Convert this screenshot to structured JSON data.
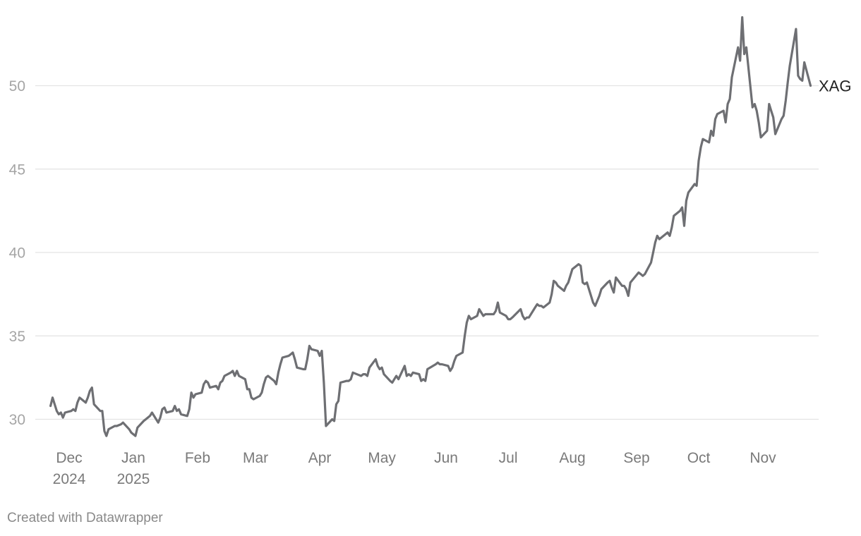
{
  "footer": {
    "credit": "Created with Datawrapper"
  },
  "colors": {
    "line": "#6e6f73",
    "grid": "#e3e3e3",
    "ytick_text": "#a5a5a5",
    "xtick_text": "#7a7a7a",
    "label_text": "#222222"
  },
  "chart_data": {
    "type": "line",
    "title": "",
    "xlabel": "",
    "ylabel": "",
    "grid": true,
    "ylim": [
      28.5,
      54.2
    ],
    "xlim": [
      "2024-11-22",
      "2025-11-24"
    ],
    "yticks": [
      30,
      35,
      40,
      45,
      50
    ],
    "xticks": [
      {
        "date": "2024-12-01",
        "label": "Dec",
        "sublabel": "2024"
      },
      {
        "date": "2025-01-01",
        "label": "Jan",
        "sublabel": "2025"
      },
      {
        "date": "2025-02-01",
        "label": "Feb",
        "sublabel": ""
      },
      {
        "date": "2025-03-01",
        "label": "Mar",
        "sublabel": ""
      },
      {
        "date": "2025-04-01",
        "label": "Apr",
        "sublabel": ""
      },
      {
        "date": "2025-05-01",
        "label": "May",
        "sublabel": ""
      },
      {
        "date": "2025-06-01",
        "label": "Jun",
        "sublabel": ""
      },
      {
        "date": "2025-07-01",
        "label": "Jul",
        "sublabel": ""
      },
      {
        "date": "2025-08-01",
        "label": "Aug",
        "sublabel": ""
      },
      {
        "date": "2025-09-01",
        "label": "Sep",
        "sublabel": ""
      },
      {
        "date": "2025-10-01",
        "label": "Oct",
        "sublabel": ""
      },
      {
        "date": "2025-11-01",
        "label": "Nov",
        "sublabel": ""
      }
    ],
    "series": [
      {
        "name": "XAG",
        "x": [
          "2024-11-22",
          "2024-11-23",
          "2024-11-25",
          "2024-11-26",
          "2024-11-27",
          "2024-11-28",
          "2024-11-29",
          "2024-12-02",
          "2024-12-03",
          "2024-12-04",
          "2024-12-05",
          "2024-12-06",
          "2024-12-09",
          "2024-12-10",
          "2024-12-11",
          "2024-12-12",
          "2024-12-13",
          "2024-12-16",
          "2024-12-17",
          "2024-12-18",
          "2024-12-19",
          "2024-12-20",
          "2024-12-23",
          "2024-12-24",
          "2024-12-26",
          "2024-12-27",
          "2024-12-30",
          "2024-12-31",
          "2025-01-02",
          "2025-01-03",
          "2025-01-06",
          "2025-01-07",
          "2025-01-08",
          "2025-01-09",
          "2025-01-10",
          "2025-01-13",
          "2025-01-14",
          "2025-01-15",
          "2025-01-16",
          "2025-01-17",
          "2025-01-20",
          "2025-01-21",
          "2025-01-22",
          "2025-01-23",
          "2025-01-24",
          "2025-01-27",
          "2025-01-28",
          "2025-01-29",
          "2025-01-30",
          "2025-01-31",
          "2025-02-03",
          "2025-02-04",
          "2025-02-05",
          "2025-02-06",
          "2025-02-07",
          "2025-02-10",
          "2025-02-11",
          "2025-02-12",
          "2025-02-13",
          "2025-02-14",
          "2025-02-17",
          "2025-02-18",
          "2025-02-19",
          "2025-02-20",
          "2025-02-21",
          "2025-02-24",
          "2025-02-25",
          "2025-02-26",
          "2025-02-27",
          "2025-02-28",
          "2025-03-03",
          "2025-03-04",
          "2025-03-05",
          "2025-03-06",
          "2025-03-07",
          "2025-03-10",
          "2025-03-11",
          "2025-03-12",
          "2025-03-13",
          "2025-03-14",
          "2025-03-17",
          "2025-03-18",
          "2025-03-19",
          "2025-03-20",
          "2025-03-21",
          "2025-03-24",
          "2025-03-25",
          "2025-03-26",
          "2025-03-27",
          "2025-03-28",
          "2025-03-31",
          "2025-04-01",
          "2025-04-02",
          "2025-04-03",
          "2025-04-04",
          "2025-04-07",
          "2025-04-08",
          "2025-04-09",
          "2025-04-10",
          "2025-04-11",
          "2025-04-14",
          "2025-04-15",
          "2025-04-16",
          "2025-04-17",
          "2025-04-21",
          "2025-04-22",
          "2025-04-23",
          "2025-04-24",
          "2025-04-25",
          "2025-04-28",
          "2025-04-29",
          "2025-04-30",
          "2025-05-01",
          "2025-05-02",
          "2025-05-05",
          "2025-05-06",
          "2025-05-07",
          "2025-05-08",
          "2025-05-09",
          "2025-05-12",
          "2025-05-13",
          "2025-05-14",
          "2025-05-15",
          "2025-05-16",
          "2025-05-19",
          "2025-05-20",
          "2025-05-21",
          "2025-05-22",
          "2025-05-23",
          "2025-05-27",
          "2025-05-28",
          "2025-05-29",
          "2025-05-30",
          "2025-06-02",
          "2025-06-03",
          "2025-06-04",
          "2025-06-05",
          "2025-06-06",
          "2025-06-09",
          "2025-06-10",
          "2025-06-11",
          "2025-06-12",
          "2025-06-13",
          "2025-06-16",
          "2025-06-17",
          "2025-06-18",
          "2025-06-19",
          "2025-06-20",
          "2025-06-23",
          "2025-06-24",
          "2025-06-25",
          "2025-06-26",
          "2025-06-27",
          "2025-06-30",
          "2025-07-01",
          "2025-07-02",
          "2025-07-03",
          "2025-07-07",
          "2025-07-08",
          "2025-07-09",
          "2025-07-10",
          "2025-07-11",
          "2025-07-14",
          "2025-07-15",
          "2025-07-16",
          "2025-07-17",
          "2025-07-18",
          "2025-07-21",
          "2025-07-22",
          "2025-07-23",
          "2025-07-24",
          "2025-07-25",
          "2025-07-28",
          "2025-07-29",
          "2025-07-30",
          "2025-07-31",
          "2025-08-01",
          "2025-08-04",
          "2025-08-05",
          "2025-08-06",
          "2025-08-07",
          "2025-08-08",
          "2025-08-11",
          "2025-08-12",
          "2025-08-13",
          "2025-08-14",
          "2025-08-15",
          "2025-08-18",
          "2025-08-19",
          "2025-08-20",
          "2025-08-21",
          "2025-08-22",
          "2025-08-25",
          "2025-08-26",
          "2025-08-27",
          "2025-08-28",
          "2025-08-29",
          "2025-09-02",
          "2025-09-03",
          "2025-09-04",
          "2025-09-05",
          "2025-09-08",
          "2025-09-09",
          "2025-09-10",
          "2025-09-11",
          "2025-09-12",
          "2025-09-15",
          "2025-09-16",
          "2025-09-17",
          "2025-09-18",
          "2025-09-19",
          "2025-09-22",
          "2025-09-23",
          "2025-09-24",
          "2025-09-25",
          "2025-09-26",
          "2025-09-29",
          "2025-09-30",
          "2025-10-01",
          "2025-10-02",
          "2025-10-03",
          "2025-10-06",
          "2025-10-07",
          "2025-10-08",
          "2025-10-09",
          "2025-10-10",
          "2025-10-13",
          "2025-10-14",
          "2025-10-15",
          "2025-10-16",
          "2025-10-17",
          "2025-10-20",
          "2025-10-21",
          "2025-10-22",
          "2025-10-23",
          "2025-10-24",
          "2025-10-27",
          "2025-10-28",
          "2025-10-29",
          "2025-10-30",
          "2025-10-31",
          "2025-11-03",
          "2025-11-04",
          "2025-11-05",
          "2025-11-06",
          "2025-11-07",
          "2025-11-10",
          "2025-11-11",
          "2025-11-12",
          "2025-11-13",
          "2025-11-14",
          "2025-11-17",
          "2025-11-18",
          "2025-11-19",
          "2025-11-20",
          "2025-11-21",
          "2025-11-24"
        ],
        "values": [
          30.8,
          31.3,
          30.5,
          30.3,
          30.4,
          30.1,
          30.4,
          30.5,
          30.6,
          30.5,
          31.0,
          31.3,
          31.0,
          31.3,
          31.7,
          31.9,
          30.9,
          30.5,
          30.5,
          29.3,
          29.0,
          29.4,
          29.6,
          29.6,
          29.7,
          29.8,
          29.4,
          29.2,
          29.0,
          29.5,
          29.9,
          30.0,
          30.1,
          30.2,
          30.4,
          29.8,
          30.1,
          30.6,
          30.7,
          30.4,
          30.5,
          30.8,
          30.5,
          30.6,
          30.3,
          30.2,
          30.6,
          31.6,
          31.3,
          31.5,
          31.6,
          32.1,
          32.3,
          32.2,
          31.9,
          32.0,
          31.8,
          32.2,
          32.3,
          32.6,
          32.8,
          32.9,
          32.6,
          32.9,
          32.6,
          32.4,
          31.8,
          31.8,
          31.3,
          31.2,
          31.4,
          31.6,
          32.1,
          32.5,
          32.6,
          32.3,
          32.1,
          32.8,
          33.3,
          33.7,
          33.8,
          33.9,
          34.0,
          33.6,
          33.1,
          33.0,
          33.0,
          33.6,
          34.4,
          34.2,
          34.1,
          33.8,
          34.1,
          32.2,
          29.6,
          30.0,
          29.9,
          30.9,
          31.1,
          32.2,
          32.3,
          32.3,
          32.4,
          32.8,
          32.6,
          32.7,
          32.7,
          32.6,
          33.1,
          33.6,
          33.2,
          33.0,
          33.1,
          32.7,
          32.3,
          32.2,
          32.4,
          32.6,
          32.4,
          33.2,
          32.6,
          32.7,
          32.6,
          32.8,
          32.7,
          32.3,
          32.4,
          32.3,
          33.0,
          33.3,
          33.4,
          33.3,
          33.3,
          33.2,
          32.9,
          33.1,
          33.5,
          33.8,
          34.0,
          35.0,
          35.8,
          36.2,
          36.0,
          36.2,
          36.6,
          36.4,
          36.2,
          36.3,
          36.3,
          36.3,
          36.5,
          37.0,
          36.4,
          36.2,
          36.0,
          36.0,
          36.1,
          36.6,
          36.2,
          36.0,
          36.1,
          36.1,
          36.7,
          36.9,
          36.8,
          36.8,
          36.7,
          37.0,
          37.5,
          38.3,
          38.2,
          38.0,
          37.7,
          38.0,
          38.2,
          38.6,
          39.0,
          39.3,
          39.2,
          38.2,
          38.1,
          38.2,
          37.0,
          36.8,
          37.1,
          37.4,
          37.8,
          38.2,
          38.3,
          37.9,
          37.6,
          38.5,
          38.0,
          38.0,
          37.8,
          37.4,
          38.2,
          38.8,
          38.7,
          38.6,
          38.7,
          39.4,
          40.0,
          40.6,
          41.0,
          40.8,
          41.1,
          41.2,
          41.0,
          41.5,
          42.2,
          42.5,
          42.7,
          41.6,
          43.1,
          43.6,
          44.1,
          44.0,
          45.5,
          46.3,
          46.8,
          46.6,
          47.3,
          47.0,
          48.0,
          48.3,
          48.5,
          47.8,
          48.9,
          49.2,
          50.5,
          52.3,
          51.5,
          54.1,
          51.9,
          52.3,
          48.7,
          48.9,
          48.5,
          47.8,
          46.9,
          47.3,
          48.9,
          48.5,
          48.1,
          47.1,
          48.0,
          48.2,
          49.1,
          50.2,
          51.2,
          53.4,
          50.6,
          50.4,
          50.3,
          51.4,
          50.0
        ]
      }
    ]
  }
}
